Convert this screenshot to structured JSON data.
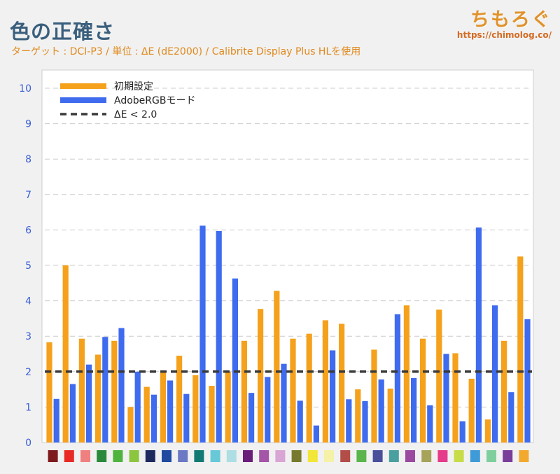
{
  "header": {
    "title": "色の正確さ",
    "subtitle": "ターゲット : DCI-P3 / 単位 : ΔE (dE2000) / Calibrite Display Plus HLを使用"
  },
  "brand": {
    "name": "ちもろぐ",
    "url": "https://chimolog.co/"
  },
  "chart_data": {
    "type": "bar",
    "title": "色の正確さ",
    "ylim": [
      0,
      10
    ],
    "yticks": [
      "0",
      "1",
      "2",
      "3",
      "4",
      "5",
      "6",
      "7",
      "8",
      "9",
      "10"
    ],
    "grid": true,
    "legend_position": "top-left",
    "categories": [
      "#7e1a1e",
      "#e82a26",
      "#f08080",
      "#2a8a3c",
      "#4fb43e",
      "#8cc63f",
      "#1e2a5e",
      "#1f4aa0",
      "#6b78c4",
      "#127a74",
      "#67c8d8",
      "#acdee3",
      "#6b1d7a",
      "#a455a8",
      "#d9a5d4",
      "#777a2c",
      "#f2e637",
      "#f5f1a6",
      "#b34d48",
      "#5bb54d",
      "#4a4f9c",
      "#4aa09e",
      "#9b49a0",
      "#a6a35a",
      "#e53b8a",
      "#c8dc48",
      "#3e9bd8",
      "#7fcf9e",
      "#7a3d9a",
      "#f2a92e"
    ],
    "series": [
      {
        "name": "初期設定",
        "color": "#f5a11c",
        "values": [
          2.83,
          5.0,
          2.93,
          2.48,
          2.87,
          1.0,
          1.57,
          1.97,
          2.45,
          1.9,
          1.6,
          2.0,
          2.87,
          3.77,
          4.28,
          2.93,
          3.07,
          3.45,
          3.35,
          1.5,
          2.62,
          1.52,
          3.87,
          2.93,
          3.75,
          2.52,
          1.8,
          0.65,
          2.87,
          5.25
        ]
      },
      {
        "name": "AdobeRGBモード",
        "color": "#3f6bee",
        "values": [
          1.23,
          1.65,
          2.2,
          2.98,
          3.23,
          2.0,
          1.35,
          1.75,
          1.37,
          6.12,
          5.97,
          4.63,
          1.4,
          1.85,
          2.22,
          1.18,
          0.48,
          2.6,
          1.22,
          1.17,
          1.78,
          3.62,
          1.82,
          1.05,
          2.5,
          0.6,
          6.07,
          3.87,
          1.42,
          3.48
        ]
      }
    ],
    "reference_line": {
      "name": "ΔE < 2.0",
      "value": 2.0,
      "color": "#3a3a3a"
    }
  }
}
